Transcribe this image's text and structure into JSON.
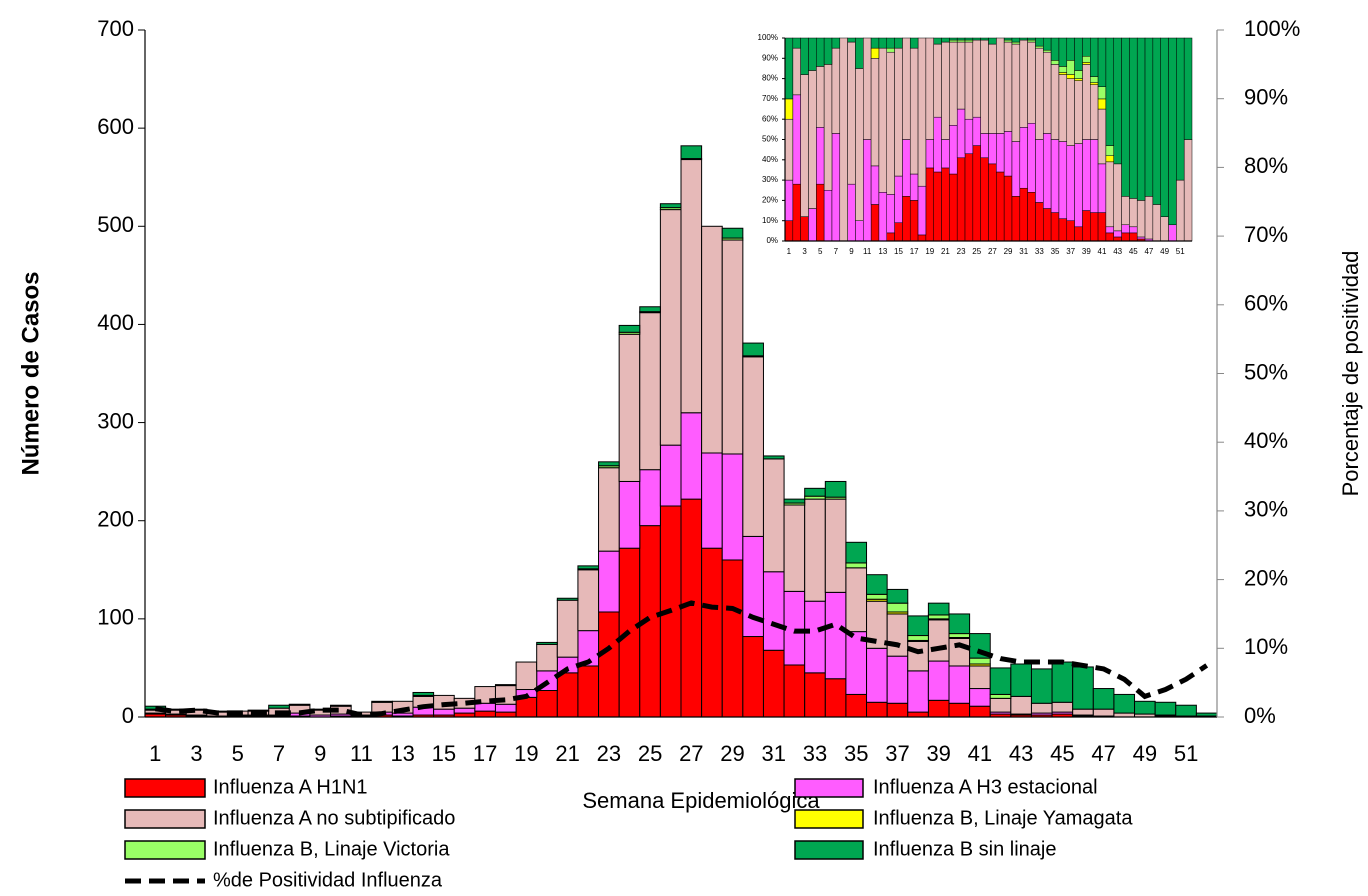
{
  "chart_data": [
    {
      "type": "bar",
      "stacked": true,
      "xlabel": "Semana Epidemiológica",
      "ylabel": "Número de Casos",
      "y2label": "Porcentaje  de positividad",
      "categories": [
        1,
        null,
        3,
        null,
        5,
        null,
        7,
        null,
        9,
        null,
        11,
        null,
        13,
        null,
        15,
        null,
        17,
        null,
        19,
        null,
        21,
        null,
        23,
        null,
        25,
        null,
        27,
        null,
        29,
        null,
        31,
        null,
        33,
        null,
        35,
        null,
        37,
        null,
        39,
        null,
        41,
        null,
        43,
        null,
        45,
        null,
        47,
        null,
        49,
        null,
        51,
        null
      ],
      "ylim": [
        0,
        700
      ],
      "yticks": [
        0,
        100,
        200,
        300,
        400,
        500,
        600,
        700
      ],
      "y2lim": [
        0,
        100
      ],
      "y2ticks": [
        {
          "value": 0,
          "label": "0%"
        },
        {
          "value": 10,
          "label": "10%"
        },
        {
          "value": 20,
          "label": "20%"
        },
        {
          "value": 30,
          "label": "30%"
        },
        {
          "value": 40,
          "label": "40%"
        },
        {
          "value": 50,
          "label": "50%"
        },
        {
          "value": 60,
          "label": "60%"
        },
        {
          "value": 70,
          "label": "70%"
        },
        {
          "value": 80,
          "label": "80%"
        },
        {
          "value": 90,
          "label": "90%"
        },
        {
          "value": 100,
          "label": "100%"
        }
      ],
      "legend": "bottom",
      "series": [
        {
          "name": "Influenza A H1N1",
          "color": "#ff0000",
          "values": [
            3,
            2,
            1,
            0,
            1,
            1,
            1,
            1,
            0,
            1,
            1,
            2,
            1,
            2,
            2,
            4,
            6,
            5,
            20,
            27,
            45,
            52,
            107,
            172,
            195,
            215,
            222,
            172,
            160,
            82,
            68,
            53,
            45,
            39,
            23,
            15,
            14,
            5,
            17,
            14,
            11,
            3,
            2,
            2,
            3,
            1,
            0,
            0,
            0,
            0,
            0,
            0
          ]
        },
        {
          "name": "Influenza A H3 estacional",
          "color": "#ff5cff",
          "values": [
            1,
            1,
            1,
            1,
            1,
            1,
            1,
            3,
            2,
            2,
            1,
            3,
            3,
            8,
            6,
            5,
            8,
            8,
            8,
            20,
            16,
            36,
            62,
            68,
            57,
            62,
            88,
            97,
            108,
            102,
            80,
            75,
            73,
            88,
            64,
            55,
            48,
            42,
            40,
            38,
            18,
            2,
            1,
            2,
            2,
            1,
            1,
            0,
            0,
            1,
            0,
            0
          ]
        },
        {
          "name": "Influenza A no subtipificado",
          "color": "#e6b9b8",
          "values": [
            3,
            4,
            5,
            4,
            4,
            4,
            7,
            8,
            5,
            8,
            3,
            10,
            12,
            11,
            14,
            10,
            17,
            19,
            28,
            27,
            58,
            62,
            85,
            150,
            160,
            240,
            258,
            231,
            218,
            183,
            115,
            88,
            104,
            95,
            65,
            48,
            43,
            30,
            42,
            28,
            23,
            14,
            18,
            10,
            10,
            6,
            7,
            4,
            3,
            1,
            1,
            1
          ]
        },
        {
          "name": "Influenza B, Linaje Yamagata",
          "color": "#ffff00",
          "values": [
            1,
            0,
            0,
            0,
            0,
            0,
            0,
            0,
            0,
            0,
            0,
            0,
            0,
            0,
            0,
            0,
            0,
            0,
            0,
            0,
            0,
            0,
            0,
            0,
            0,
            0,
            0,
            0,
            0,
            0,
            0,
            0,
            0,
            0,
            0,
            2,
            2,
            1,
            1,
            1,
            2,
            0,
            0,
            0,
            0,
            0,
            0,
            0,
            0,
            0,
            0,
            0
          ]
        },
        {
          "name": "Influenza B, Linaje Victoria",
          "color": "#99ff66",
          "values": [
            0,
            0,
            0,
            0,
            0,
            0,
            0,
            0,
            0,
            0,
            0,
            0,
            0,
            1,
            0,
            0,
            0,
            0,
            0,
            0,
            0,
            1,
            2,
            2,
            1,
            2,
            1,
            0,
            2,
            1,
            0,
            2,
            3,
            2,
            5,
            5,
            9,
            5,
            4,
            4,
            6,
            4,
            0,
            0,
            0,
            0,
            0,
            0,
            0,
            0,
            0,
            0
          ]
        },
        {
          "name": "Influenza B sin linaje",
          "color": "#00a651",
          "values": [
            3,
            1,
            1,
            1,
            0,
            1,
            3,
            1,
            1,
            1,
            0,
            1,
            0,
            3,
            0,
            0,
            0,
            1,
            0,
            2,
            2,
            3,
            4,
            7,
            5,
            4,
            13,
            0,
            10,
            13,
            3,
            4,
            8,
            16,
            21,
            20,
            14,
            20,
            12,
            20,
            25,
            27,
            33,
            35,
            41,
            43,
            21,
            19,
            13,
            13,
            11,
            3
          ]
        },
        {
          "name": "%de Positividad Influenza",
          "type": "line",
          "axis": "y2",
          "color": "#000000",
          "values": [
            1.2,
            0.8,
            1.0,
            0.6,
            0.6,
            0.6,
            0.6,
            0.6,
            1.0,
            1.0,
            0.3,
            0.5,
            1.0,
            1.5,
            1.8,
            2.0,
            2.3,
            2.5,
            3,
            5,
            7,
            8,
            10,
            12.5,
            14.5,
            15.5,
            16.6,
            16,
            15.8,
            14.5,
            13.5,
            12.5,
            12.5,
            13.5,
            11.5,
            11,
            10.5,
            9.5,
            10,
            10.5,
            9.5,
            8.5,
            8,
            8,
            8,
            7.5,
            7,
            5.5,
            3,
            4,
            5.5,
            7.5
          ]
        }
      ]
    },
    {
      "type": "bar",
      "stacked": true,
      "categories": [
        1,
        null,
        3,
        null,
        5,
        null,
        7,
        null,
        9,
        null,
        11,
        null,
        13,
        null,
        15,
        null,
        17,
        null,
        19,
        null,
        21,
        null,
        23,
        null,
        25,
        null,
        27,
        null,
        29,
        null,
        31,
        null,
        33,
        null,
        35,
        null,
        37,
        null,
        39,
        null,
        41,
        null,
        43,
        null,
        45,
        null,
        47,
        null,
        49,
        null,
        51,
        null
      ],
      "ylim": [
        0,
        100
      ],
      "yticks": [
        {
          "value": 0,
          "label": "0%"
        },
        {
          "value": 10,
          "label": "10%"
        },
        {
          "value": 20,
          "label": "20%"
        },
        {
          "value": 30,
          "label": "30%"
        },
        {
          "value": 40,
          "label": "40%"
        },
        {
          "value": 50,
          "label": "50%"
        },
        {
          "value": 60,
          "label": "60%"
        },
        {
          "value": 70,
          "label": "70%"
        },
        {
          "value": 80,
          "label": "80%"
        },
        {
          "value": 90,
          "label": "90%"
        },
        {
          "value": 100,
          "label": "100%"
        }
      ],
      "series": [
        {
          "color": "#ff0000",
          "values": [
            10,
            28,
            12,
            0,
            28,
            0,
            0,
            0,
            0,
            0,
            0,
            18,
            0,
            4,
            9,
            22,
            20,
            3,
            36,
            34,
            36,
            33,
            41,
            43,
            47,
            41,
            38,
            34,
            32,
            22,
            26,
            24,
            19,
            16,
            14,
            11,
            10,
            7,
            15,
            14,
            14,
            4,
            2,
            4,
            4,
            1,
            0,
            0,
            0,
            0,
            0,
            0
          ]
        },
        {
          "color": "#ff5cff",
          "values": [
            20,
            44,
            0,
            16,
            28,
            25,
            53,
            0,
            28,
            10,
            50,
            19,
            24,
            19,
            23,
            28,
            13,
            24,
            14,
            27,
            14,
            24,
            24,
            17,
            14,
            12,
            15,
            19,
            22,
            27,
            30,
            34,
            31,
            37,
            36,
            38,
            37,
            41,
            35,
            36,
            24,
            3,
            3,
            4,
            3,
            1,
            1,
            0,
            0,
            8,
            0,
            0
          ]
        },
        {
          "color": "#e6b9b8",
          "values": [
            30,
            23,
            70,
            68,
            30,
            62,
            42,
            100,
            70,
            75,
            50,
            53,
            71,
            70,
            63,
            50,
            62,
            73,
            50,
            36,
            48,
            41,
            33,
            38,
            38,
            46,
            44,
            47,
            44,
            48,
            43,
            40,
            45,
            40,
            37,
            33,
            33,
            31,
            37,
            27,
            27,
            32,
            33,
            14,
            14,
            18,
            21,
            18,
            12,
            0,
            30,
            50
          ]
        },
        {
          "color": "#ffff00",
          "values": [
            10,
            0,
            0,
            0,
            0,
            0,
            0,
            0,
            0,
            0,
            0,
            5,
            0,
            0,
            0,
            0,
            0,
            0,
            0,
            0,
            0,
            0,
            0,
            0,
            0,
            0,
            0,
            0,
            0,
            0,
            0,
            0,
            0,
            0,
            0,
            1,
            2,
            1,
            1,
            1,
            5,
            3,
            0,
            0,
            0,
            0,
            0,
            0,
            0,
            0,
            0,
            0
          ]
        },
        {
          "color": "#99ff66",
          "values": [
            0,
            0,
            0,
            0,
            0,
            0,
            0,
            0,
            0,
            0,
            0,
            0,
            0,
            2,
            0,
            0,
            0,
            0,
            0,
            0,
            0,
            1,
            1,
            1,
            0,
            0,
            0,
            0,
            1,
            1,
            0,
            1,
            1,
            1,
            2,
            3,
            7,
            4,
            3,
            3,
            6,
            5,
            0,
            0,
            0,
            0,
            0,
            0,
            0,
            0,
            0,
            0
          ]
        },
        {
          "color": "#00a651",
          "values": [
            30,
            5,
            18,
            16,
            14,
            13,
            5,
            0,
            2,
            15,
            0,
            5,
            5,
            5,
            5,
            0,
            5,
            0,
            0,
            3,
            2,
            1,
            1,
            1,
            1,
            1,
            3,
            0,
            1,
            2,
            1,
            1,
            4,
            6,
            11,
            14,
            11,
            16,
            9,
            19,
            24,
            53,
            62,
            78,
            79,
            80,
            78,
            82,
            88,
            92,
            70,
            50
          ]
        }
      ]
    }
  ]
}
